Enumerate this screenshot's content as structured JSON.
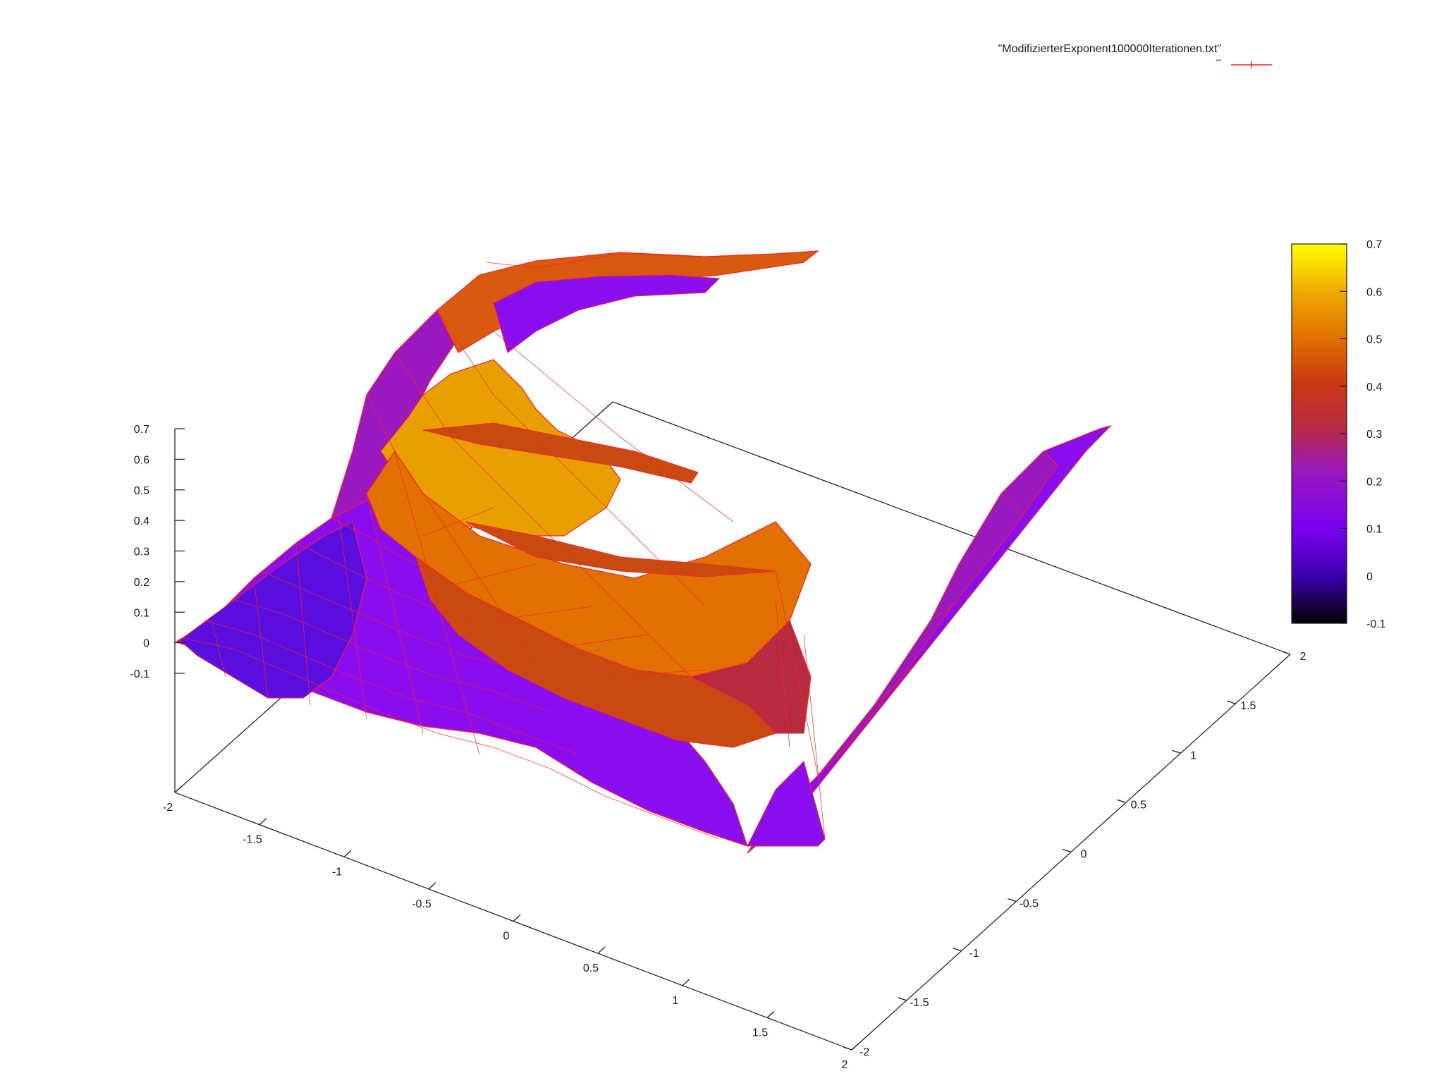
{
  "chart_data": {
    "type": "surface3d",
    "title": "",
    "legend": {
      "entries": [
        {
          "label": "\"ModifizierterExponent100000Iterationen.txt\"",
          "sublabel": "\"\"",
          "color": "#ff2020"
        }
      ],
      "placement": "top-right"
    },
    "x_axis": {
      "range": [
        -2,
        2
      ],
      "tick_labels": [
        "-2",
        "-1.5",
        "-1",
        "-0.5",
        "0",
        "0.5",
        "1",
        "1.5",
        "2"
      ]
    },
    "y_axis": {
      "range": [
        -2,
        2
      ],
      "tick_labels": [
        "-2",
        "-1.5",
        "-1",
        "-0.5",
        "0",
        "0.5",
        "1",
        "1.5",
        "2"
      ]
    },
    "z_axis": {
      "range": [
        -0.1,
        0.7
      ],
      "tick_labels": [
        "0.7",
        "0.6",
        "0.5",
        "0.4",
        "0.3",
        "0.2",
        "0.1",
        "0",
        "-0.1"
      ]
    },
    "colorbar": {
      "range": [
        -0.1,
        0.7
      ],
      "tick_labels": [
        "0.7",
        "0.6",
        "0.5",
        "0.4",
        "0.3",
        "0.2",
        "0.1",
        "0",
        "-0.1"
      ],
      "palette": [
        "#000000",
        "#3a00a8",
        "#8a0ef0",
        "#9a18c0",
        "#b82a40",
        "#d84010",
        "#e87000",
        "#f0a000",
        "#ffff00"
      ]
    },
    "surface_color": "#ff2020",
    "grid": false
  }
}
